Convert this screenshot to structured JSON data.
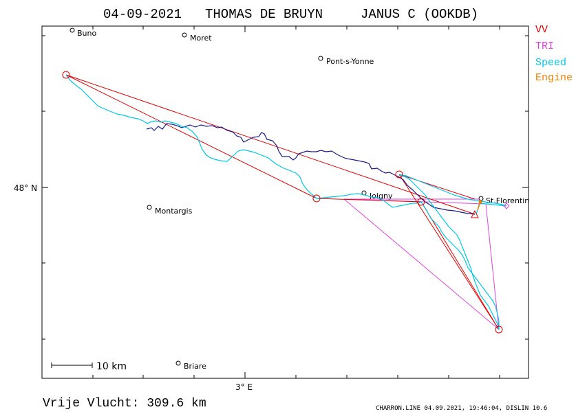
{
  "header": {
    "date": "04-09-2021",
    "pilot": "THOMAS DE BRUYN",
    "glider": "JANUS C (OOKDB)"
  },
  "legend": {
    "items": [
      {
        "label": "VV",
        "color": "#e00000"
      },
      {
        "label": "TRI",
        "color": "#e040e0"
      },
      {
        "label": "Speed",
        "color": "#00c8e8"
      },
      {
        "label": "Engine",
        "color": "#f08000"
      }
    ]
  },
  "axes": {
    "lat_label": "48° N",
    "lon_label": "3° E"
  },
  "scale": {
    "label": "10 km"
  },
  "towns": [
    {
      "name": "Buno"
    },
    {
      "name": "Moret"
    },
    {
      "name": "Pont-s-Yonne"
    },
    {
      "name": "Joigny"
    },
    {
      "name": "St.Florentin"
    },
    {
      "name": "Montargis"
    },
    {
      "name": "Briare"
    }
  ],
  "footer": {
    "distance": "Vrije Vlucht:  309.6 km",
    "credits": "CHARRON.LINE 04.09.2021, 19:46:04, DISLIN 10.6"
  },
  "colors": {
    "track_engine": "#1a1a8a",
    "track_speed": "#00c8e8",
    "task_vv": "#e00000",
    "task_tri": "#e040e0",
    "engine_marker": "#f08000"
  }
}
